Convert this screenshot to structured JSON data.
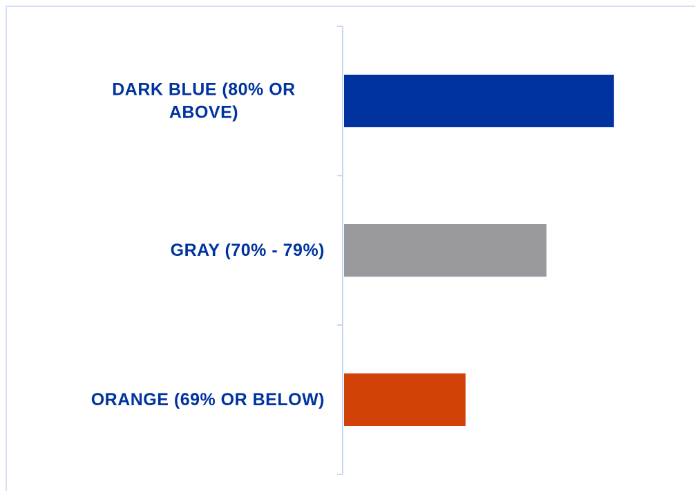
{
  "chart_data": {
    "type": "bar",
    "orientation": "horizontal",
    "categories": [
      "DARK BLUE (80% OR ABOVE)",
      "GRAY (70% - 79%)",
      "ORANGE (69% OR BELOW)"
    ],
    "values": [
      100,
      75,
      45
    ],
    "colors": [
      "#0033a0",
      "#9a999e",
      "#d14209"
    ],
    "xlim": [
      0,
      130
    ]
  }
}
